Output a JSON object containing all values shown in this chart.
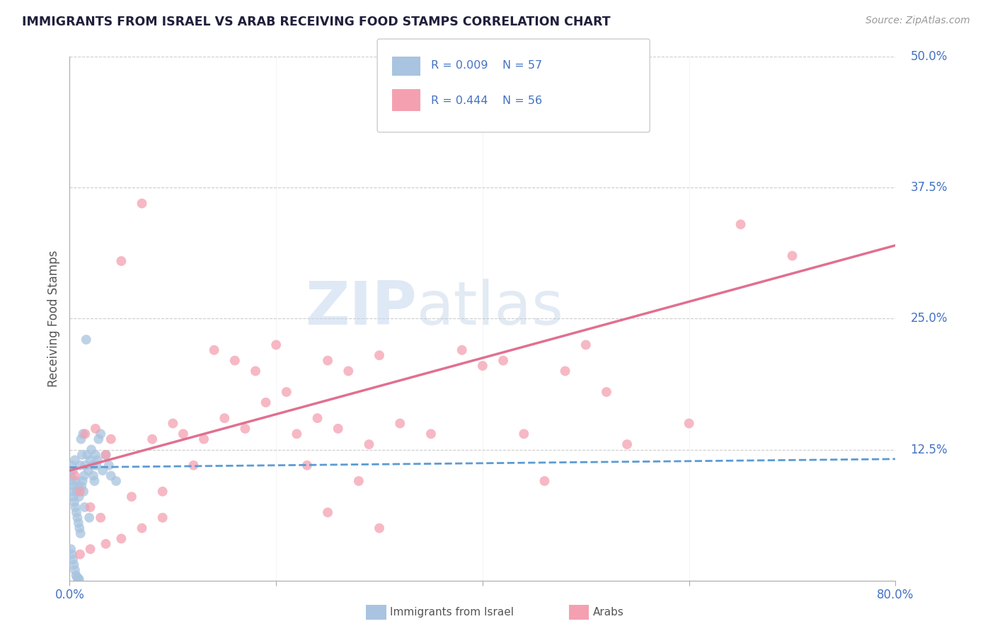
{
  "title": "IMMIGRANTS FROM ISRAEL VS ARAB RECEIVING FOOD STAMPS CORRELATION CHART",
  "source": "Source: ZipAtlas.com",
  "ylabel": "Receiving Food Stamps",
  "xlim": [
    0.0,
    80.0
  ],
  "ylim": [
    0.0,
    50.0
  ],
  "yticks": [
    0.0,
    12.5,
    25.0,
    37.5,
    50.0
  ],
  "ytick_labels": [
    "",
    "12.5%",
    "25.0%",
    "37.5%",
    "50.0%"
  ],
  "israel_R": 0.009,
  "israel_N": 57,
  "arab_R": 0.444,
  "arab_N": 56,
  "israel_color": "#a8c4e0",
  "arab_color": "#f4a0b0",
  "israel_line_color": "#5b9bd5",
  "arab_line_color": "#e07090",
  "watermark_zip": "ZIP",
  "watermark_atlas": "atlas",
  "title_color": "#1f1f3c",
  "axis_label_color": "#4472c4",
  "background_color": "#ffffff",
  "israel_scatter_x": [
    0.1,
    0.15,
    0.2,
    0.25,
    0.3,
    0.35,
    0.4,
    0.45,
    0.5,
    0.55,
    0.6,
    0.65,
    0.7,
    0.75,
    0.8,
    0.85,
    0.9,
    0.95,
    1.0,
    1.05,
    1.1,
    1.15,
    1.2,
    1.25,
    1.3,
    1.35,
    1.4,
    1.45,
    1.5,
    1.6,
    1.7,
    1.8,
    1.9,
    2.0,
    2.1,
    2.2,
    2.3,
    2.4,
    2.5,
    2.6,
    2.7,
    2.8,
    3.0,
    3.2,
    3.5,
    3.8,
    4.0,
    4.5,
    0.12,
    0.22,
    0.32,
    0.42,
    0.52,
    0.62,
    0.72,
    0.82,
    0.92
  ],
  "israel_scatter_y": [
    10.0,
    9.5,
    11.0,
    8.5,
    10.5,
    8.0,
    9.0,
    7.5,
    11.5,
    7.0,
    9.5,
    6.5,
    8.5,
    6.0,
    9.0,
    5.5,
    8.0,
    5.0,
    11.0,
    4.5,
    13.5,
    9.0,
    12.0,
    9.5,
    14.0,
    8.5,
    10.0,
    7.0,
    11.0,
    23.0,
    12.0,
    10.5,
    6.0,
    11.5,
    12.5,
    11.0,
    10.0,
    9.5,
    12.0,
    11.0,
    11.5,
    13.5,
    14.0,
    10.5,
    12.0,
    11.0,
    10.0,
    9.5,
    3.0,
    2.5,
    2.0,
    1.5,
    1.0,
    0.5,
    0.3,
    0.2,
    0.1
  ],
  "arab_scatter_x": [
    0.5,
    1.0,
    1.5,
    2.0,
    2.5,
    3.0,
    3.5,
    4.0,
    5.0,
    6.0,
    7.0,
    8.0,
    9.0,
    10.0,
    11.0,
    12.0,
    13.0,
    14.0,
    15.0,
    16.0,
    17.0,
    18.0,
    19.0,
    20.0,
    21.0,
    22.0,
    23.0,
    24.0,
    25.0,
    26.0,
    27.0,
    28.0,
    29.0,
    30.0,
    32.0,
    35.0,
    38.0,
    40.0,
    42.0,
    44.0,
    46.0,
    48.0,
    50.0,
    52.0,
    54.0,
    60.0,
    65.0,
    70.0,
    25.0,
    30.0,
    7.0,
    9.0,
    5.0,
    3.5,
    2.0,
    1.0
  ],
  "arab_scatter_y": [
    10.0,
    8.5,
    14.0,
    7.0,
    14.5,
    6.0,
    12.0,
    13.5,
    30.5,
    8.0,
    36.0,
    13.5,
    8.5,
    15.0,
    14.0,
    11.0,
    13.5,
    22.0,
    15.5,
    21.0,
    14.5,
    20.0,
    17.0,
    22.5,
    18.0,
    14.0,
    11.0,
    15.5,
    21.0,
    14.5,
    20.0,
    9.5,
    13.0,
    21.5,
    15.0,
    14.0,
    22.0,
    20.5,
    21.0,
    14.0,
    9.5,
    20.0,
    22.5,
    18.0,
    13.0,
    15.0,
    34.0,
    31.0,
    6.5,
    5.0,
    5.0,
    6.0,
    4.0,
    3.5,
    3.0,
    2.5
  ],
  "israel_trend_x": [
    0.0,
    80.0
  ],
  "israel_trend_y": [
    10.8,
    11.6
  ],
  "arab_trend_x": [
    0.0,
    80.0
  ],
  "arab_trend_y": [
    10.5,
    32.0
  ]
}
